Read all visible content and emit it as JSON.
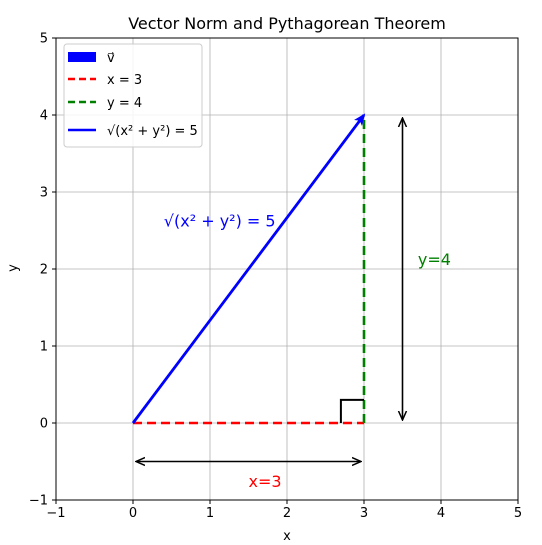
{
  "chart_data": {
    "type": "line",
    "title": "Vector Norm and Pythagorean Theorem",
    "xlabel": "x",
    "ylabel": "y",
    "xlim": [
      -1,
      5
    ],
    "ylim": [
      -1,
      5
    ],
    "xticks": [
      -1,
      0,
      1,
      2,
      3,
      4,
      5
    ],
    "yticks": [
      -1,
      0,
      1,
      2,
      3,
      4,
      5
    ],
    "xtick_labels": [
      "−1",
      "0",
      "1",
      "2",
      "3",
      "4",
      "5"
    ],
    "ytick_labels": [
      "−1",
      "0",
      "1",
      "2",
      "3",
      "4",
      "5"
    ],
    "grid": true,
    "legend_position": "top-left",
    "series": [
      {
        "key": "vector",
        "name": "v⃗",
        "kind": "arrow",
        "color": "#0000ff",
        "x": [
          0,
          3
        ],
        "y": [
          0,
          4
        ]
      },
      {
        "key": "xcomp",
        "name": "x = 3",
        "kind": "dashed",
        "color": "#ff0000",
        "x": [
          0,
          3
        ],
        "y": [
          0,
          0
        ]
      },
      {
        "key": "ycomp",
        "name": "y = 4",
        "kind": "dashed",
        "color": "#008000",
        "x": [
          3,
          3
        ],
        "y": [
          0,
          4
        ]
      },
      {
        "key": "norm",
        "name": "√(x² + y²) = 5",
        "kind": "line",
        "color": "#0000ff"
      }
    ],
    "annotations": [
      {
        "key": "norm_label",
        "text": "√(x² + y²) = 5",
        "color": "#0000ff",
        "x": 0.4,
        "y": 2.55
      },
      {
        "key": "x_label",
        "text": "x=3",
        "color": "#ff0000",
        "x": 1.5,
        "y": -0.83
      },
      {
        "key": "y_label",
        "text": "y=4",
        "color": "#008000",
        "x": 3.7,
        "y": 2.05
      }
    ],
    "measure_arrows": [
      {
        "key": "horizontal",
        "x": [
          0,
          3
        ],
        "y": [
          -0.5,
          -0.5
        ],
        "color": "#000000"
      },
      {
        "key": "vertical",
        "x": [
          3.5,
          3.5
        ],
        "y": [
          0,
          4
        ],
        "color": "#000000"
      }
    ],
    "right_angle_marker": {
      "x": [
        2.7,
        3
      ],
      "y": [
        0,
        0.3
      ],
      "color": "#000000"
    }
  }
}
